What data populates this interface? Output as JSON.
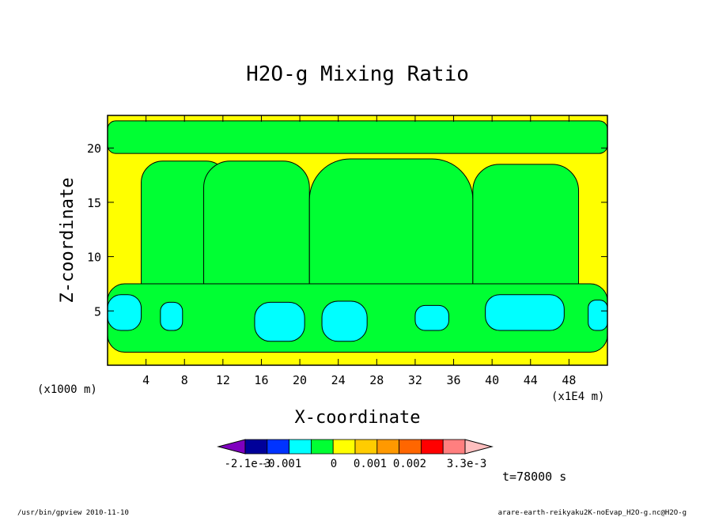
{
  "chart_data": {
    "type": "heatmap",
    "title": "H2O-g Mixing Ratio",
    "xlabel": "X-coordinate",
    "ylabel": "Z-coordinate",
    "x_unit_left": "(x1000 m)",
    "x_unit_right": "(x1E4 m)",
    "xlim": [
      0,
      52
    ],
    "ylim": [
      0,
      23
    ],
    "x_ticks": [
      4,
      8,
      12,
      16,
      20,
      24,
      28,
      32,
      36,
      40,
      44,
      48
    ],
    "y_ticks": [
      5,
      10,
      15,
      20
    ],
    "background_level": "0 to 0.001",
    "regions": [
      {
        "level": "-0.001 to 0",
        "label": "top band",
        "x": [
          0,
          52
        ],
        "y": [
          19.5,
          22.5
        ]
      },
      {
        "level": "-0.001 to 0",
        "label": "plume A",
        "x": [
          3.5,
          12.5
        ],
        "y": [
          1.2,
          18.8
        ]
      },
      {
        "level": "-0.001 to 0",
        "label": "plume B",
        "x": [
          10,
          21
        ],
        "y": [
          1.2,
          18.8
        ]
      },
      {
        "level": "-0.001 to 0",
        "label": "plume C",
        "x": [
          21,
          38
        ],
        "y": [
          1.2,
          19
        ]
      },
      {
        "level": "-0.001 to 0",
        "label": "plume D",
        "x": [
          38,
          49
        ],
        "y": [
          1.2,
          18.5
        ]
      },
      {
        "level": "-0.001 to 0",
        "label": "lower layer",
        "x": [
          0,
          52
        ],
        "y": [
          1.2,
          7.5
        ]
      },
      {
        "level": "-0.002 to -0.001",
        "x": [
          0,
          3.5
        ],
        "y": [
          3.2,
          6.5
        ]
      },
      {
        "level": "-0.002 to -0.001",
        "x": [
          5.5,
          7.8
        ],
        "y": [
          3.2,
          5.8
        ]
      },
      {
        "level": "-0.002 to -0.001",
        "x": [
          15.3,
          20.5
        ],
        "y": [
          2.2,
          5.8
        ]
      },
      {
        "level": "-0.002 to -0.001",
        "x": [
          22.3,
          27
        ],
        "y": [
          2.2,
          5.9
        ]
      },
      {
        "level": "-0.002 to -0.001",
        "x": [
          32,
          35.5
        ],
        "y": [
          3.2,
          5.5
        ]
      },
      {
        "level": "-0.002 to -0.001",
        "x": [
          39.3,
          47.5
        ],
        "y": [
          3.2,
          6.5
        ]
      },
      {
        "level": "-0.002 to -0.001",
        "x": [
          50,
          52
        ],
        "y": [
          3.2,
          6
        ]
      }
    ],
    "colorbar": {
      "colors": [
        "#7f00bf",
        "#000099",
        "#0033ff",
        "#00ffff",
        "#00ff33",
        "#ffff00",
        "#ffcc00",
        "#ff9900",
        "#ff6600",
        "#ff0000",
        "#ff7f7f",
        "#ffbfbf"
      ],
      "labels": [
        "-2.1e-3",
        "-0.001",
        "0",
        "0.001",
        "0.002",
        "3.3e-3"
      ]
    },
    "time_label": "t=78000 s"
  },
  "footer": {
    "left": "/usr/bin/gpview   2010-11-10",
    "right": "arare-earth-reikyaku2K-noEvap_H2O-g.nc@H2O-g"
  }
}
